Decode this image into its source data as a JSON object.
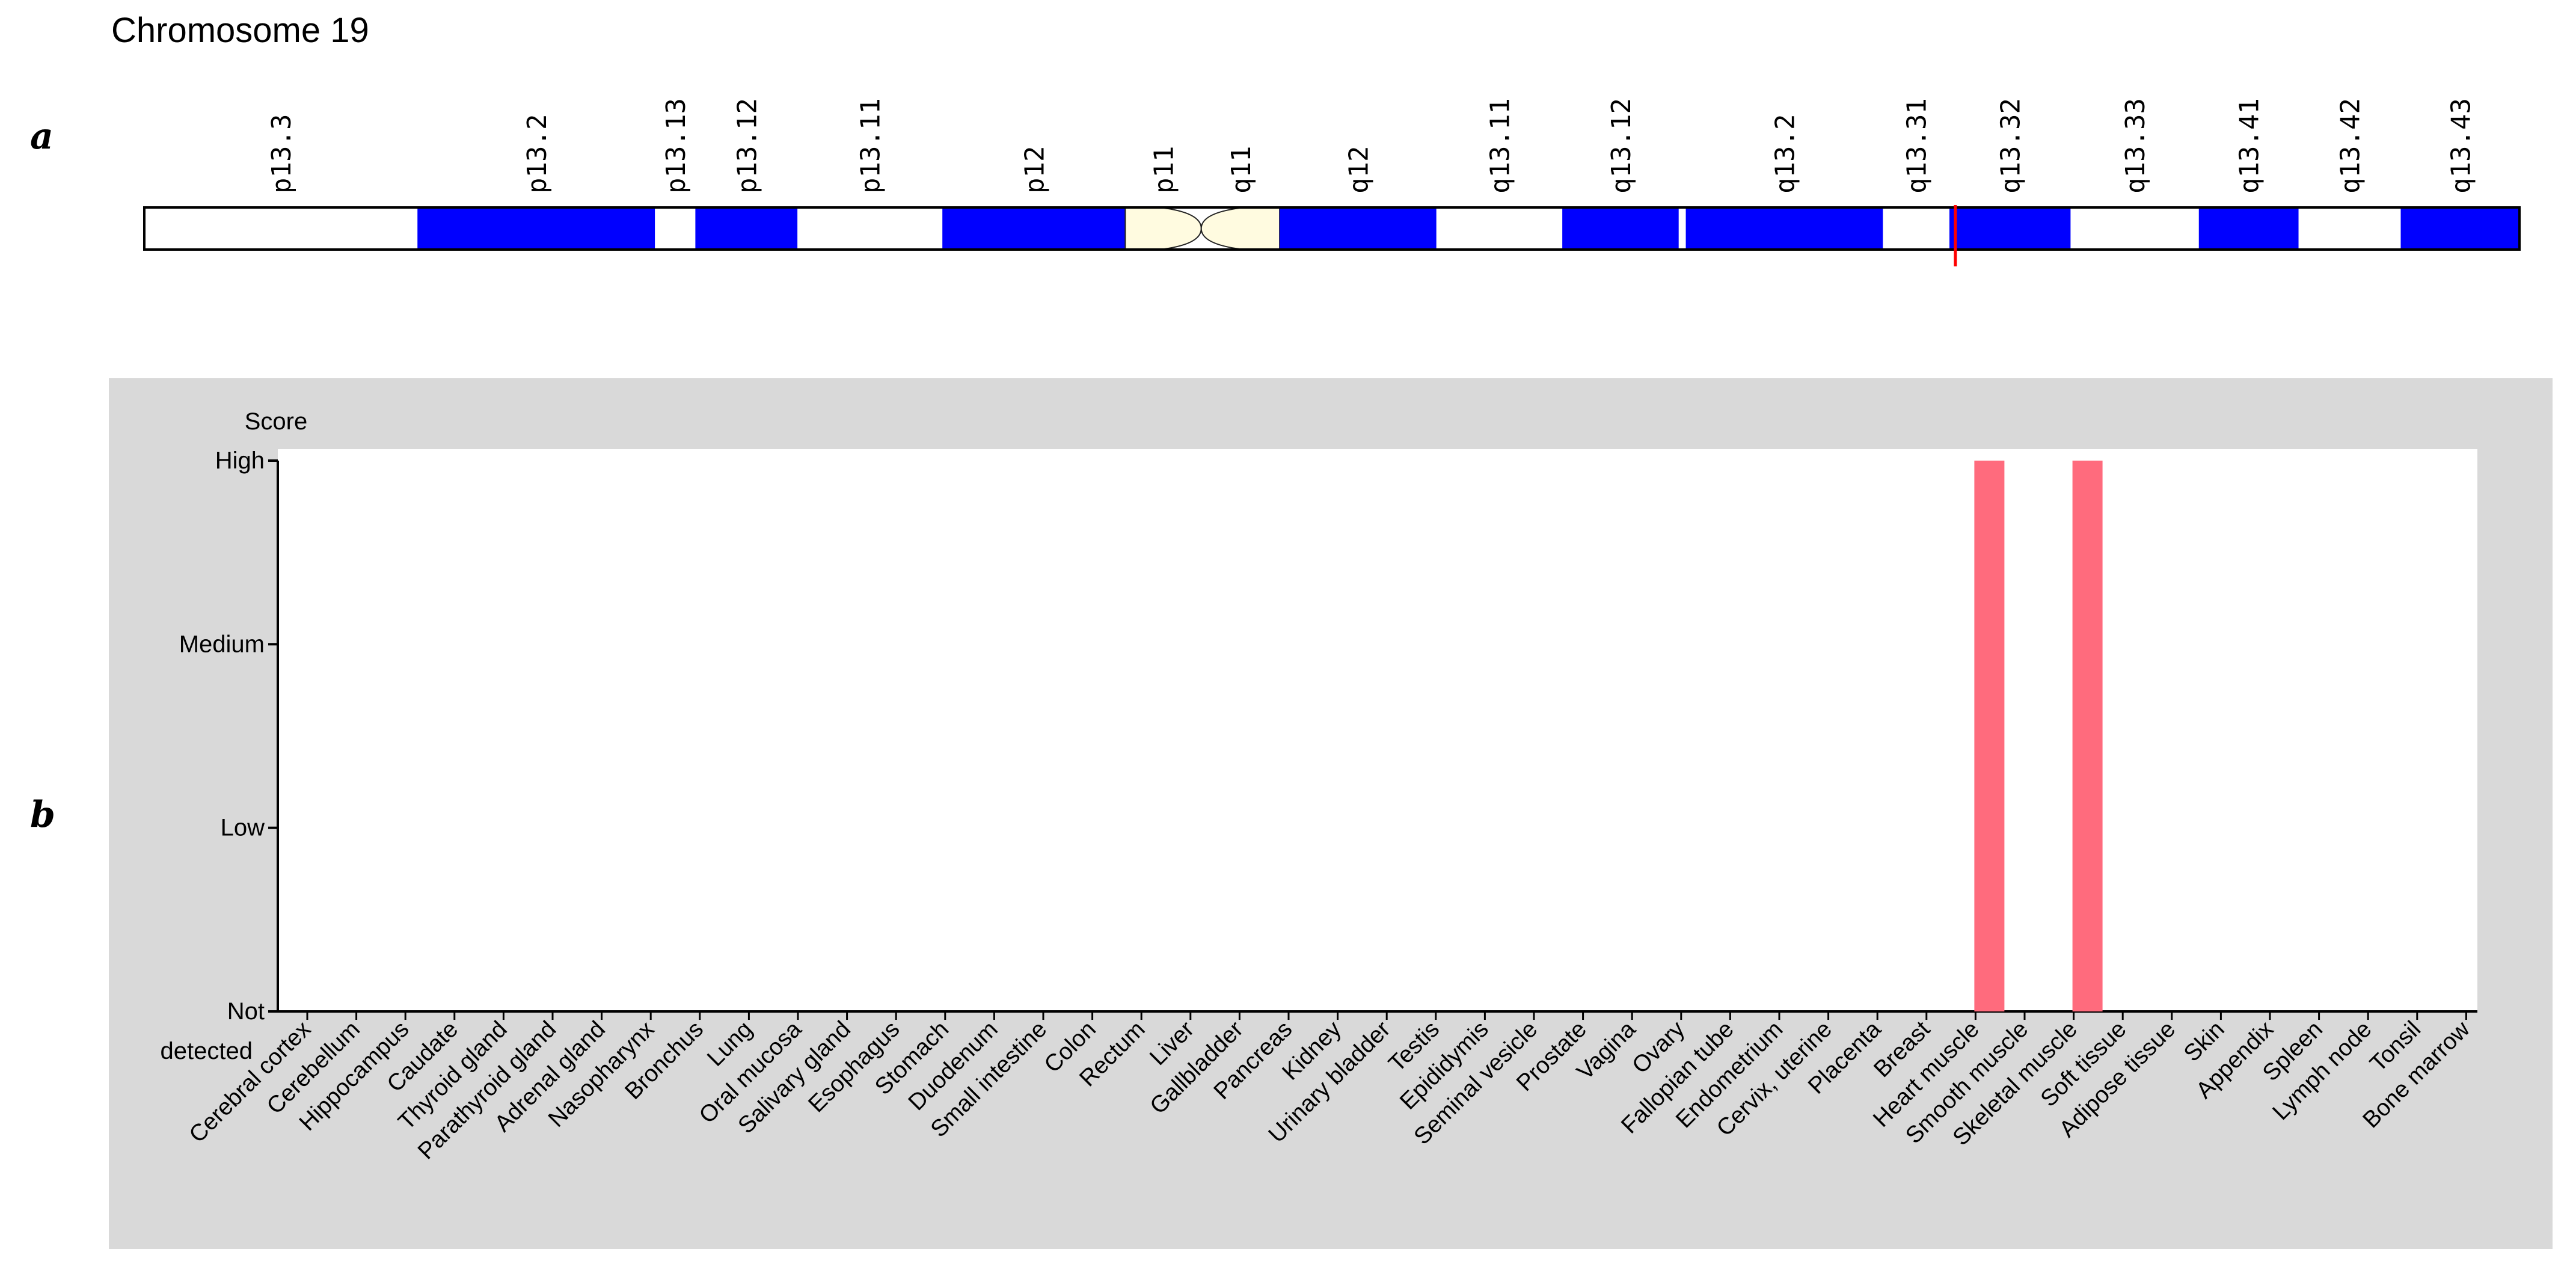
{
  "panel_labels": {
    "a": "a",
    "b": "b"
  },
  "chromosome": {
    "title": "Chromosome 19",
    "marker_color": "#ff0000",
    "band_colors": {
      "gpos": "#0000ff",
      "gneg": "#ffffff",
      "acen": "#fffbe0"
    },
    "bands": [
      {
        "name": "p13.3",
        "start": 0.0,
        "end": 0.115,
        "stain": "gneg"
      },
      {
        "name": "p13.2",
        "start": 0.115,
        "end": 0.215,
        "stain": "gpos"
      },
      {
        "name": "p13.13",
        "start": 0.215,
        "end": 0.232,
        "stain": "gneg"
      },
      {
        "name": "p13.12",
        "start": 0.232,
        "end": 0.275,
        "stain": "gpos"
      },
      {
        "name": "p13.11",
        "start": 0.275,
        "end": 0.336,
        "stain": "gneg"
      },
      {
        "name": "p12",
        "start": 0.336,
        "end": 0.413,
        "stain": "gpos"
      },
      {
        "name": "p11",
        "start": 0.413,
        "end": 0.445,
        "stain": "acen"
      },
      {
        "name": "q11",
        "start": 0.445,
        "end": 0.478,
        "stain": "acen"
      },
      {
        "name": "q12",
        "start": 0.478,
        "end": 0.544,
        "stain": "gpos"
      },
      {
        "name": "q13.11",
        "start": 0.544,
        "end": 0.597,
        "stain": "gneg"
      },
      {
        "name": "q13.12",
        "start": 0.597,
        "end": 0.646,
        "stain": "gpos"
      },
      {
        "name": "q13.2",
        "start": 0.649,
        "end": 0.732,
        "stain": "gpos"
      },
      {
        "name": "q13.31",
        "start": 0.732,
        "end": 0.76,
        "stain": "gneg"
      },
      {
        "name": "q13.32",
        "start": 0.76,
        "end": 0.811,
        "stain": "gpos"
      },
      {
        "name": "q13.33",
        "start": 0.811,
        "end": 0.865,
        "stain": "gneg"
      },
      {
        "name": "q13.41",
        "start": 0.865,
        "end": 0.907,
        "stain": "gpos"
      },
      {
        "name": "q13.42",
        "start": 0.907,
        "end": 0.95,
        "stain": "gneg"
      },
      {
        "name": "q13.43",
        "start": 0.95,
        "end": 1.0,
        "stain": "gpos"
      }
    ],
    "marker_position": 0.7625
  },
  "chart_data": {
    "type": "bar",
    "y_title": "Score",
    "y_levels": [
      "Not detected",
      "Low",
      "Medium",
      "High"
    ],
    "y_level_lines": [
      [
        "Not",
        "detected"
      ],
      [
        "Low"
      ],
      [
        "Medium"
      ],
      [
        "High"
      ]
    ],
    "ylim": [
      0,
      3
    ],
    "bar_color": "#ff6b7d",
    "categories": [
      "Cerebral cortex",
      "Cerebellum",
      "Hippocampus",
      "Caudate",
      "Thyroid gland",
      "Parathyroid gland",
      "Adrenal gland",
      "Nasopharynx",
      "Bronchus",
      "Lung",
      "Oral mucosa",
      "Salivary gland",
      "Esophagus",
      "Stomach",
      "Duodenum",
      "Small intestine",
      "Colon",
      "Rectum",
      "Liver",
      "Gallbladder",
      "Pancreas",
      "Kidney",
      "Urinary bladder",
      "Testis",
      "Epididymis",
      "Seminal vesicle",
      "Prostate",
      "Vagina",
      "Ovary",
      "Fallopian tube",
      "Endometrium",
      "Cervix, uterine",
      "Placenta",
      "Breast",
      "Heart muscle",
      "Smooth muscle",
      "Skeletal muscle",
      "Soft tissue",
      "Adipose tissue",
      "Skin",
      "Appendix",
      "Spleen",
      "Lymph node",
      "Tonsil",
      "Bone marrow"
    ],
    "values": [
      0,
      0,
      0,
      0,
      0,
      0,
      0,
      0,
      0,
      0,
      0,
      0,
      0,
      0,
      0,
      0,
      0,
      0,
      0,
      0,
      0,
      0,
      0,
      0,
      0,
      0,
      0,
      0,
      0,
      0,
      0,
      0,
      0,
      0,
      3,
      0,
      3,
      0,
      0,
      0,
      0,
      0,
      0,
      0,
      0
    ]
  }
}
